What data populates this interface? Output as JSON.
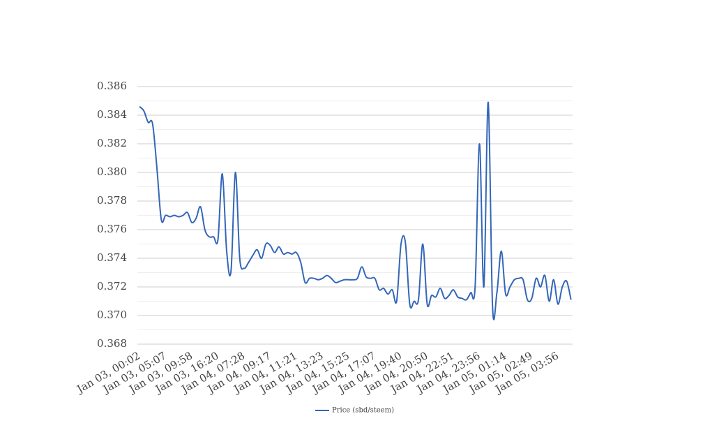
{
  "chart_data": {
    "type": "line",
    "categories": [
      "Jan 03, 00:02",
      null,
      null,
      null,
      null,
      null,
      "Jan 03, 05:07",
      null,
      null,
      null,
      null,
      null,
      "Jan 03, 09:58",
      null,
      null,
      null,
      null,
      null,
      "Jan 03, 16:20",
      null,
      null,
      null,
      null,
      null,
      "Jan 04, 07:28",
      null,
      null,
      null,
      null,
      null,
      "Jan 04, 09:17",
      null,
      null,
      null,
      null,
      null,
      "Jan 04, 11:21",
      null,
      null,
      null,
      null,
      null,
      "Jan 04, 13:23",
      null,
      null,
      null,
      null,
      null,
      "Jan 04, 15:25",
      null,
      null,
      null,
      null,
      null,
      "Jan 04, 17:07",
      null,
      null,
      null,
      null,
      null,
      "Jan 04, 19:40",
      null,
      null,
      null,
      null,
      null,
      "Jan 04, 20:50",
      null,
      null,
      null,
      null,
      null,
      "Jan 04, 22:51",
      null,
      null,
      null,
      null,
      null,
      "Jan 04, 23:56",
      null,
      null,
      null,
      null,
      null,
      "Jan 05, 01:14",
      null,
      null,
      null,
      null,
      null,
      "Jan 05, 02:49",
      null,
      null,
      null,
      null,
      null,
      "Jan 05, 03:56",
      null,
      null,
      null
    ],
    "series": [
      {
        "name": "Price (sbd/steem)",
        "color": "#3366b8",
        "values": [
          0.3846,
          0.3843,
          0.3835,
          0.3834,
          0.3803,
          0.3767,
          0.377,
          0.3769,
          0.377,
          0.3769,
          0.377,
          0.3772,
          0.3765,
          0.3768,
          0.3776,
          0.376,
          0.3755,
          0.3755,
          0.3753,
          0.3799,
          0.3745,
          0.3731,
          0.38,
          0.374,
          0.3733,
          0.3737,
          0.3742,
          0.3746,
          0.374,
          0.375,
          0.3749,
          0.3744,
          0.3748,
          0.3743,
          0.3744,
          0.3743,
          0.3744,
          0.3737,
          0.3723,
          0.3726,
          0.3726,
          0.3725,
          0.3726,
          0.3728,
          0.3726,
          0.3723,
          0.3724,
          0.3725,
          0.3725,
          0.3725,
          0.3726,
          0.3734,
          0.3727,
          0.3726,
          0.3726,
          0.3718,
          0.3719,
          0.3715,
          0.3718,
          0.371,
          0.375,
          0.3751,
          0.3708,
          0.371,
          0.3711,
          0.375,
          0.3708,
          0.3714,
          0.3713,
          0.3719,
          0.3712,
          0.3714,
          0.3718,
          0.3713,
          0.3712,
          0.3711,
          0.3716,
          0.372,
          0.382,
          0.372,
          0.3849,
          0.3706,
          0.3716,
          0.3745,
          0.3715,
          0.372,
          0.3725,
          0.3726,
          0.3725,
          0.3711,
          0.3712,
          0.3726,
          0.372,
          0.3728,
          0.371,
          0.3725,
          0.3708,
          0.372,
          0.3724,
          0.3711
        ]
      }
    ],
    "ylim": [
      0.368,
      0.386
    ],
    "yticks": [
      0.368,
      {
        "value": 0.37,
        "label": "0.370"
      },
      0.372,
      0.374,
      0.376,
      0.378,
      {
        "value": 0.38,
        "label": "0.380"
      },
      0.382,
      0.384,
      0.386
    ],
    "grid": true,
    "legend": "bottom"
  }
}
